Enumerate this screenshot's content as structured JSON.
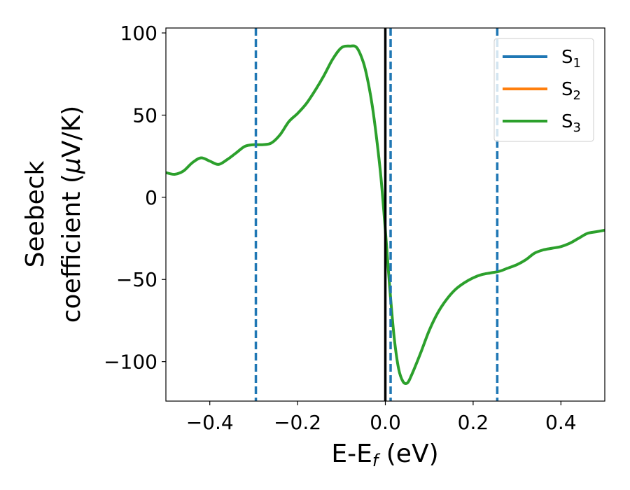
{
  "chart_data": {
    "type": "line",
    "xlabel": {
      "main": "E-E",
      "sub": "f",
      "tail": " (eV)"
    },
    "ylabel": {
      "line1": "Seebeck",
      "line2_pre": "coefficient  (",
      "line2_mu": "μ",
      "line2_post": "V/K)"
    },
    "xlim": [
      -0.5,
      0.5
    ],
    "ylim": [
      -124,
      103
    ],
    "x_ticks": [
      -0.4,
      -0.2,
      0.0,
      0.2,
      0.4
    ],
    "x_tick_labels": [
      "−0.4",
      "−0.2",
      "0.0",
      "0.2",
      "0.4"
    ],
    "y_ticks": [
      100,
      50,
      0,
      -50,
      -100
    ],
    "y_tick_labels": [
      "100",
      "50",
      "0",
      "−50",
      "−100"
    ],
    "grid": false,
    "legend_position": "top-right",
    "series": [
      {
        "name": "S",
        "sub": "1",
        "color": "#1f77b4"
      },
      {
        "name": "S",
        "sub": "2",
        "color": "#ff7f0e"
      },
      {
        "name": "S",
        "sub": "3",
        "color": "#2ca02c"
      }
    ],
    "curve": {
      "color": "#2ca02c",
      "x": [
        -0.5,
        -0.48,
        -0.46,
        -0.44,
        -0.42,
        -0.4,
        -0.38,
        -0.36,
        -0.34,
        -0.32,
        -0.3,
        -0.28,
        -0.26,
        -0.24,
        -0.22,
        -0.2,
        -0.18,
        -0.16,
        -0.14,
        -0.12,
        -0.1,
        -0.08,
        -0.065,
        -0.05,
        -0.04,
        -0.03,
        -0.02,
        -0.01,
        0.0,
        0.01,
        0.02,
        0.03,
        0.04,
        0.05,
        0.06,
        0.08,
        0.1,
        0.12,
        0.14,
        0.16,
        0.18,
        0.2,
        0.22,
        0.24,
        0.26,
        0.28,
        0.3,
        0.32,
        0.34,
        0.36,
        0.38,
        0.4,
        0.42,
        0.44,
        0.46,
        0.48,
        0.5
      ],
      "y": [
        15,
        14,
        16,
        21,
        24,
        22,
        20,
        23,
        27,
        31,
        32,
        32,
        33,
        38,
        46,
        51,
        57,
        65,
        74,
        84,
        91,
        92,
        91,
        82,
        71,
        56,
        36,
        12,
        -20,
        -55,
        -85,
        -104,
        -112,
        -113,
        -108,
        -95,
        -81,
        -70,
        -62,
        -56,
        -52,
        -49,
        -47,
        -46,
        -45,
        -43,
        -41,
        -38,
        -34,
        -32,
        -31,
        -30,
        -28,
        -25,
        -22,
        -21,
        -20
      ]
    },
    "vlines": [
      {
        "x": -0.295,
        "style": "dashed",
        "color": "#1f77b4"
      },
      {
        "x": 0.012,
        "style": "dashed",
        "color": "#1f77b4"
      },
      {
        "x": 0.255,
        "style": "dashed",
        "color": "#1f77b4"
      },
      {
        "x": 0.0,
        "style": "solid",
        "color": "#000000"
      }
    ]
  }
}
